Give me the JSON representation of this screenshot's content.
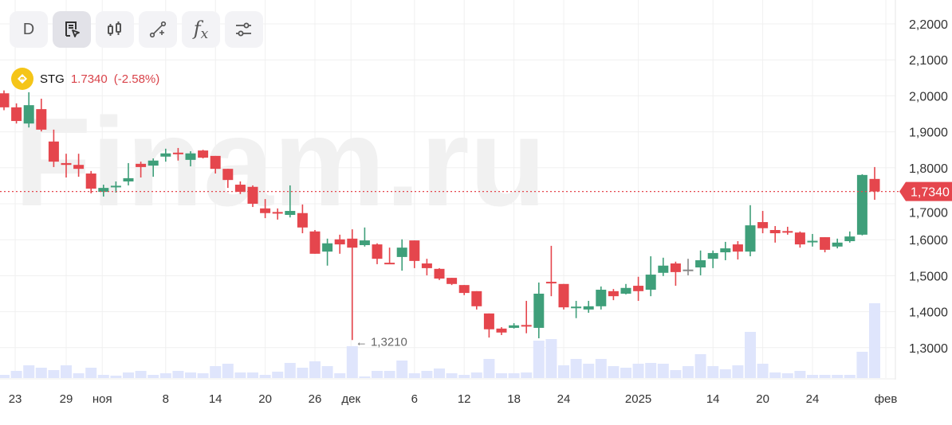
{
  "toolbar": {
    "items": [
      {
        "label": "D",
        "icon": "interval-day",
        "active": false
      },
      {
        "label": "",
        "icon": "document-cursor-icon",
        "active": true
      },
      {
        "label": "",
        "icon": "candlestick-icon",
        "active": false
      },
      {
        "label": "",
        "icon": "draw-line-plus-icon",
        "active": false
      },
      {
        "label": "fx",
        "icon": "function-icon",
        "active": false
      },
      {
        "label": "",
        "icon": "sliders-icon",
        "active": false
      }
    ]
  },
  "ticker": {
    "symbol": "STG",
    "price": "1.7340",
    "change": "(-2.58%)",
    "coin_color": "#f5c518"
  },
  "watermark": "Finam.ru",
  "colors": {
    "up": "#3f9f7a",
    "down": "#e5464d",
    "neutral": "#888888",
    "volume": "#dfe5fc",
    "grid": "#f0f0f0",
    "last_price": "#e5464d"
  },
  "chart_data": {
    "type": "candlestick",
    "ylim": [
      1.22,
      2.23
    ],
    "y_ticks": [
      "2,2000",
      "2,1000",
      "2,0000",
      "1,9000",
      "1,8000",
      "1,7000",
      "1,6000",
      "1,5000",
      "1,4000",
      "1,3000"
    ],
    "y_tick_values": [
      2.2,
      2.1,
      2.0,
      1.9,
      1.8,
      1.7,
      1.6,
      1.5,
      1.4,
      1.3
    ],
    "x_ticks": [
      "23",
      "29",
      "ноя",
      "8",
      "14",
      "20",
      "26",
      "дек",
      "6",
      "12",
      "18",
      "24",
      "2025",
      "14",
      "20",
      "24",
      "фев"
    ],
    "last_price": 1.734,
    "last_price_label": "1,7340",
    "min_annotation": {
      "label": "← 1,3210",
      "value": 1.321
    },
    "grid": true,
    "candles": [
      [
        2.007,
        2.015,
        1.96,
        1.968
      ],
      [
        1.968,
        1.979,
        1.923,
        1.93
      ],
      [
        1.923,
        2.01,
        1.912,
        1.974
      ],
      [
        1.963,
        1.992,
        1.901,
        1.906
      ],
      [
        1.873,
        1.906,
        1.802,
        1.817
      ],
      [
        1.813,
        1.839,
        1.773,
        1.808
      ],
      [
        1.808,
        1.839,
        1.775,
        1.797
      ],
      [
        1.784,
        1.791,
        1.729,
        1.742
      ],
      [
        1.733,
        1.753,
        1.72,
        1.744
      ],
      [
        1.748,
        1.762,
        1.731,
        1.75
      ],
      [
        1.762,
        1.813,
        1.751,
        1.771
      ],
      [
        1.811,
        1.817,
        1.773,
        1.802
      ],
      [
        1.806,
        1.826,
        1.775,
        1.82
      ],
      [
        1.831,
        1.853,
        1.817,
        1.84
      ],
      [
        1.842,
        1.855,
        1.82,
        1.839
      ],
      [
        1.822,
        1.846,
        1.804,
        1.84
      ],
      [
        1.848,
        1.85,
        1.826,
        1.828
      ],
      [
        1.833,
        1.833,
        1.784,
        1.797
      ],
      [
        1.797,
        1.797,
        1.744,
        1.766
      ],
      [
        1.753,
        1.762,
        1.727,
        1.733
      ],
      [
        1.747,
        1.751,
        1.691,
        1.7
      ],
      [
        1.687,
        1.713,
        1.66,
        1.674
      ],
      [
        1.677,
        1.687,
        1.656,
        1.675
      ],
      [
        1.669,
        1.751,
        1.662,
        1.68
      ],
      [
        1.674,
        1.698,
        1.618,
        1.634
      ],
      [
        1.623,
        1.627,
        1.561,
        1.561
      ],
      [
        1.567,
        1.603,
        1.528,
        1.59
      ],
      [
        1.601,
        1.614,
        1.561,
        1.587
      ],
      [
        1.603,
        1.629,
        1.321,
        1.578
      ],
      [
        1.585,
        1.634,
        1.581,
        1.598
      ],
      [
        1.587,
        1.59,
        1.532,
        1.547
      ],
      [
        1.536,
        1.578,
        1.532,
        1.534
      ],
      [
        1.552,
        1.601,
        1.514,
        1.578
      ],
      [
        1.598,
        1.598,
        1.521,
        1.541
      ],
      [
        1.534,
        1.547,
        1.501,
        1.521
      ],
      [
        1.519,
        1.521,
        1.488,
        1.492
      ],
      [
        1.494,
        1.494,
        1.474,
        1.477
      ],
      [
        1.474,
        1.474,
        1.446,
        1.452
      ],
      [
        1.457,
        1.457,
        1.406,
        1.415
      ],
      [
        1.395,
        1.395,
        1.328,
        1.351
      ],
      [
        1.353,
        1.357,
        1.335,
        1.342
      ],
      [
        1.355,
        1.368,
        1.353,
        1.362
      ],
      [
        1.363,
        1.43,
        1.34,
        1.361
      ],
      [
        1.355,
        1.481,
        1.326,
        1.45
      ],
      [
        1.483,
        1.583,
        1.443,
        1.479
      ],
      [
        1.477,
        1.477,
        1.406,
        1.412
      ],
      [
        1.41,
        1.43,
        1.382,
        1.414
      ],
      [
        1.406,
        1.43,
        1.397,
        1.415
      ],
      [
        1.415,
        1.47,
        1.406,
        1.461
      ],
      [
        1.457,
        1.463,
        1.432,
        1.443
      ],
      [
        1.45,
        1.477,
        1.448,
        1.466
      ],
      [
        1.472,
        1.497,
        1.43,
        1.457
      ],
      [
        1.461,
        1.554,
        1.443,
        1.503
      ],
      [
        1.508,
        1.55,
        1.499,
        1.528
      ],
      [
        1.534,
        1.539,
        1.472,
        1.51
      ],
      [
        1.517,
        1.547,
        1.501,
        1.517
      ],
      [
        1.523,
        1.57,
        1.501,
        1.543
      ],
      [
        1.547,
        1.57,
        1.521,
        1.563
      ],
      [
        1.565,
        1.594,
        1.543,
        1.576
      ],
      [
        1.587,
        1.596,
        1.545,
        1.567
      ],
      [
        1.567,
        1.696,
        1.554,
        1.64
      ],
      [
        1.649,
        1.68,
        1.618,
        1.632
      ],
      [
        1.627,
        1.638,
        1.592,
        1.618
      ],
      [
        1.624,
        1.636,
        1.614,
        1.622
      ],
      [
        1.62,
        1.623,
        1.578,
        1.587
      ],
      [
        1.595,
        1.616,
        1.581,
        1.597
      ],
      [
        1.607,
        1.607,
        1.565,
        1.572
      ],
      [
        1.581,
        1.603,
        1.576,
        1.592
      ],
      [
        1.596,
        1.623,
        1.592,
        1.609
      ],
      [
        1.614,
        1.782,
        1.612,
        1.78
      ],
      [
        1.769,
        1.802,
        1.711,
        1.734
      ]
    ],
    "candle_format": [
      "open",
      "high",
      "low",
      "close"
    ],
    "volume_relative": [
      4,
      9,
      16,
      13,
      10,
      16,
      6,
      13,
      4,
      3,
      7,
      9,
      4,
      6,
      9,
      7,
      6,
      15,
      18,
      7,
      7,
      4,
      8,
      19,
      13,
      21,
      15,
      6,
      40,
      2,
      9,
      9,
      22,
      6,
      9,
      12,
      6,
      4,
      7,
      24,
      6,
      6,
      7,
      47,
      49,
      16,
      24,
      18,
      24,
      15,
      13,
      18,
      19,
      18,
      10,
      15,
      30,
      15,
      11,
      16,
      58,
      18,
      7,
      6,
      9,
      4,
      4,
      4,
      4,
      33,
      94
    ]
  }
}
